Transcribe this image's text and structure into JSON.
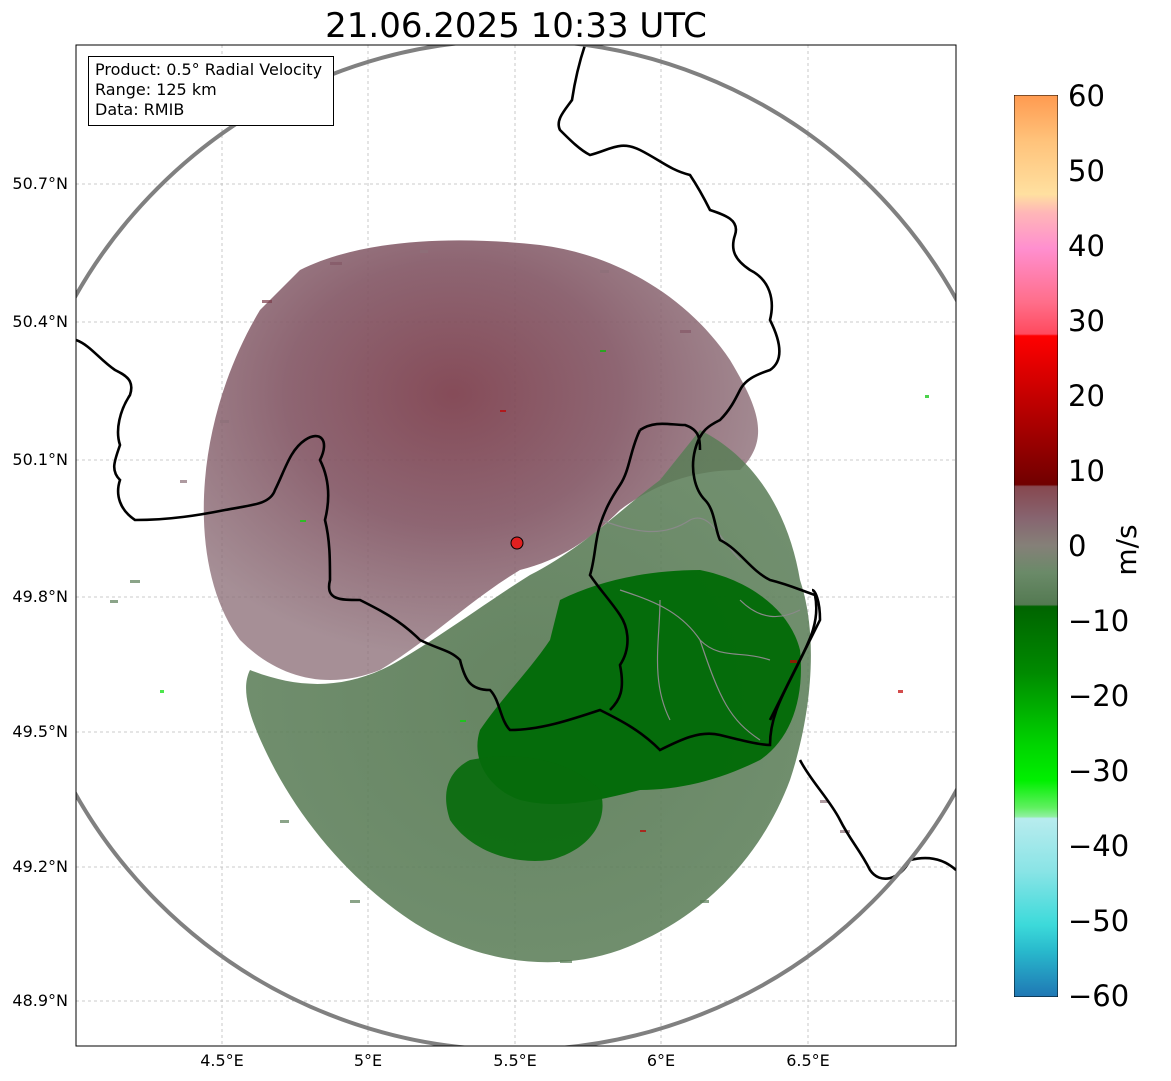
{
  "title": "21.06.2025 10:33 UTC",
  "info": {
    "product": "Product: 0.5° Radial Velocity",
    "range": "Range: 125 km",
    "data": "Data: RMIB"
  },
  "lat_ticks": [
    "50.7°N",
    "50.4°N",
    "50.1°N",
    "49.8°N",
    "49.5°N",
    "49.2°N",
    "48.9°N"
  ],
  "lon_ticks": [
    "4.5°E",
    "5°E",
    "5.5°E",
    "6°E",
    "6.5°E"
  ],
  "colorbar": {
    "label": "m/s",
    "ticks": [
      "60",
      "50",
      "40",
      "30",
      "20",
      "10",
      "0",
      "−10",
      "−20",
      "−30",
      "−40",
      "−50",
      "−60"
    ],
    "range": [
      -60,
      60
    ]
  },
  "colors": {
    "approaching_dark": "#006400",
    "approaching_mid": "#5a7d57",
    "receding_mid": "#8a6a72",
    "receding_dark": "#7a3a44",
    "range_ring": "#808080",
    "radar_site": "#e02020"
  }
}
